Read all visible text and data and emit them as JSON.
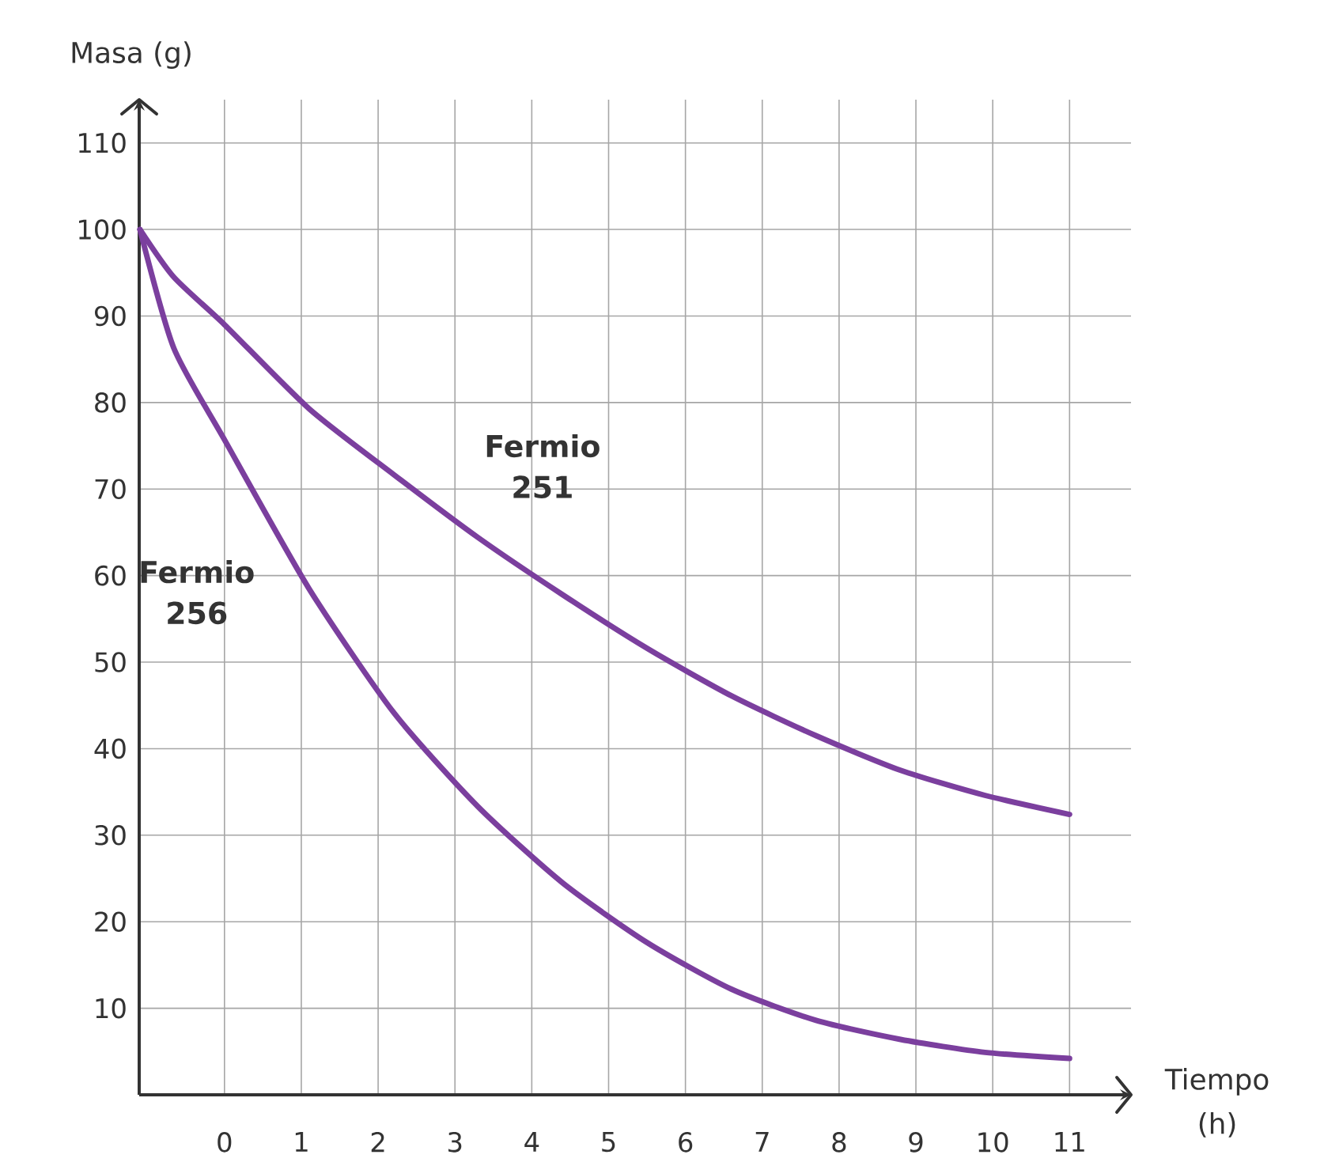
{
  "chart_data": {
    "type": "line",
    "xlabel": "Tiempo (h)",
    "ylabel": "Masa (g)",
    "x": [
      -1.1,
      -0.66,
      0,
      1.1,
      2.2,
      3.3,
      4.4,
      5.5,
      6.6,
      7.7,
      8.8,
      9.9,
      11
    ],
    "series": [
      {
        "name": "Fermio 251",
        "color": "#7b3f9e",
        "values": [
          100,
          94.5,
          89,
          79.3,
          71.7,
          64.4,
          57.8,
          51.6,
          46.1,
          41.5,
          37.5,
          34.6,
          32.4
        ]
      },
      {
        "name": "Fermio 256",
        "color": "#7b3f9e",
        "values": [
          100,
          86.3,
          75.7,
          58.5,
          44.2,
          33.3,
          24.5,
          17.6,
          12.2,
          8.6,
          6.4,
          4.9,
          4.2
        ]
      }
    ],
    "xlim": [
      -1.11,
      11.8
    ],
    "ylim": [
      0,
      115
    ],
    "xticks": [
      0,
      1,
      2,
      3,
      4,
      5,
      6,
      7,
      8,
      9,
      10,
      11
    ],
    "yticks": [
      10,
      20,
      30,
      40,
      50,
      60,
      70,
      80,
      90,
      100,
      110
    ],
    "grid": true,
    "marker": "none",
    "line_style": "solid"
  }
}
